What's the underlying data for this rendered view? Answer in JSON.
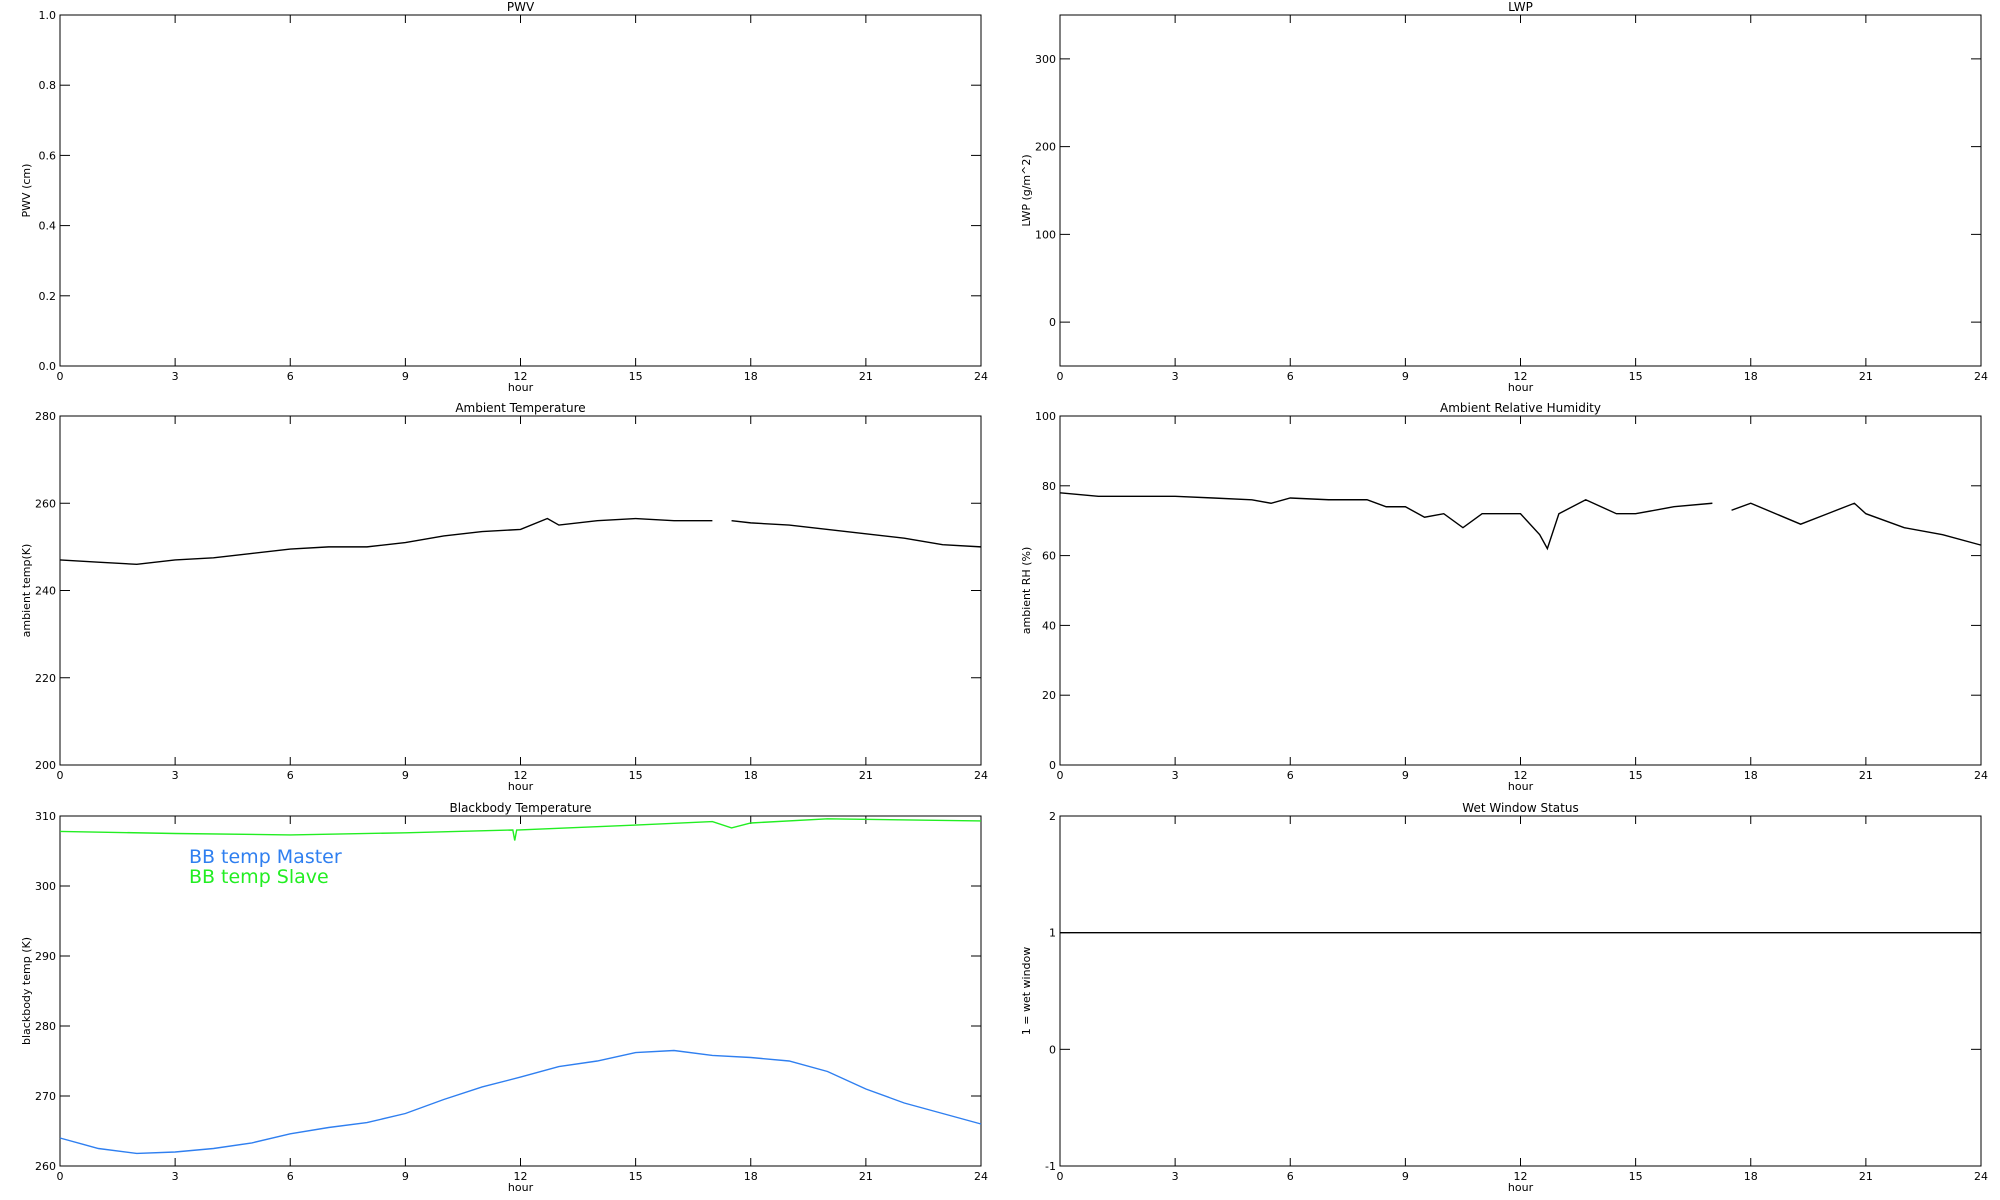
{
  "chart_data": [
    {
      "type": "line",
      "title": "PWV",
      "xlabel": "hour",
      "ylabel": "PWV (cm)",
      "xlim": [
        0,
        24
      ],
      "xticks": [
        0,
        3,
        6,
        9,
        12,
        15,
        18,
        21,
        24
      ],
      "ylim": [
        0,
        1
      ],
      "yticks": [
        {
          "value": 0,
          "label": "0.0"
        },
        {
          "value": 0.2,
          "label": "0.2"
        },
        {
          "value": 0.4,
          "label": "0.4"
        },
        {
          "value": 0.6,
          "label": "0.6"
        },
        {
          "value": 0.8,
          "label": "0.8"
        },
        {
          "value": 1,
          "label": "1.0"
        }
      ],
      "series": []
    },
    {
      "type": "line",
      "title": "LWP",
      "xlabel": "hour",
      "ylabel": "LWP (g/m^2)",
      "xlim": [
        0,
        24
      ],
      "xticks": [
        0,
        3,
        6,
        9,
        12,
        15,
        18,
        21,
        24
      ],
      "ylim": [
        -50,
        350
      ],
      "yticks": [
        0,
        100,
        200,
        300
      ],
      "series": []
    },
    {
      "type": "line",
      "title": "Ambient Temperature",
      "xlabel": "hour",
      "ylabel": "ambient temp(K)",
      "xlim": [
        0,
        24
      ],
      "xticks": [
        0,
        3,
        6,
        9,
        12,
        15,
        18,
        21,
        24
      ],
      "ylim": [
        200,
        280
      ],
      "yticks": [
        200,
        220,
        240,
        260,
        280
      ],
      "series": [
        {
          "color": "#000000",
          "x": [
            0,
            1,
            2,
            3,
            4,
            5,
            6,
            7,
            8,
            9,
            10,
            11,
            12,
            12.7,
            13,
            14,
            15,
            16,
            17,
            17.3,
            17.5,
            18,
            19,
            20,
            21,
            22,
            23,
            24
          ],
          "values": [
            247,
            246.5,
            246,
            247,
            247.5,
            248.5,
            249.5,
            250,
            250,
            251,
            252.5,
            253.5,
            254,
            256.5,
            255,
            256,
            256.5,
            256,
            256,
            null,
            256,
            255.5,
            255,
            254,
            253,
            252,
            250.5,
            250
          ]
        }
      ]
    },
    {
      "type": "line",
      "title": "Ambient Relative Humidity",
      "xlabel": "hour",
      "ylabel": "ambient RH (%)",
      "xlim": [
        0,
        24
      ],
      "xticks": [
        0,
        3,
        6,
        9,
        12,
        15,
        18,
        21,
        24
      ],
      "ylim": [
        0,
        100
      ],
      "yticks": [
        0,
        20,
        40,
        60,
        80,
        100
      ],
      "series": [
        {
          "color": "#000000",
          "x": [
            0,
            1,
            2,
            3,
            4,
            5,
            5.5,
            6,
            7,
            8,
            8.5,
            9,
            9.5,
            10,
            10.5,
            11,
            12,
            12.5,
            12.7,
            13,
            13.7,
            14.5,
            15,
            16,
            17,
            17.3,
            17.5,
            18,
            19.3,
            20,
            20.7,
            21,
            22,
            23,
            24
          ],
          "values": [
            78,
            77,
            77,
            77,
            76.5,
            76,
            75,
            76.5,
            76,
            76,
            74,
            74,
            71,
            72,
            68,
            72,
            72,
            66,
            62,
            72,
            76,
            72,
            72,
            74,
            75,
            null,
            73,
            75,
            69,
            72,
            75,
            72,
            68,
            66,
            63
          ]
        }
      ]
    },
    {
      "type": "line",
      "title": "Blackbody Temperature",
      "xlabel": "hour",
      "ylabel": "blackbody temp (K)",
      "xlim": [
        0,
        24
      ],
      "xticks": [
        0,
        3,
        6,
        9,
        12,
        15,
        18,
        21,
        24
      ],
      "ylim": [
        260,
        310
      ],
      "yticks": [
        260,
        270,
        280,
        290,
        300,
        310
      ],
      "legend": "upper left",
      "series": [
        {
          "name": "BB temp Master",
          "color": "#2f7ff0",
          "x": [
            0,
            1,
            2,
            3,
            4,
            5,
            6,
            7,
            8,
            9,
            10,
            11,
            12,
            13,
            14,
            15,
            16,
            17,
            18,
            19,
            20,
            21,
            22,
            23,
            24
          ],
          "values": [
            264,
            262.5,
            261.8,
            262,
            262.5,
            263.3,
            264.6,
            265.5,
            266.2,
            267.5,
            269.5,
            271.3,
            272.7,
            274.2,
            275,
            276.2,
            276.5,
            275.8,
            275.5,
            275,
            273.5,
            271,
            269,
            267.5,
            266
          ]
        },
        {
          "name": "BB temp Slave",
          "color": "#22ee22",
          "x": [
            0,
            3,
            6,
            9,
            11.8,
            11.85,
            11.9,
            15,
            17,
            17.5,
            18,
            20,
            24
          ],
          "values": [
            307.8,
            307.5,
            307.3,
            307.6,
            308,
            306.5,
            308,
            308.7,
            309.2,
            308.3,
            309,
            309.6,
            309.3
          ]
        }
      ]
    },
    {
      "type": "line",
      "title": "Wet Window Status",
      "xlabel": "hour",
      "ylabel": "1 = wet window",
      "xlim": [
        0,
        24
      ],
      "xticks": [
        0,
        3,
        6,
        9,
        12,
        15,
        18,
        21,
        24
      ],
      "ylim": [
        -1,
        2
      ],
      "yticks": [
        -1,
        0,
        1,
        2
      ],
      "series": [
        {
          "color": "#000000",
          "x": [
            0,
            24
          ],
          "values": [
            1,
            1
          ]
        }
      ]
    }
  ]
}
